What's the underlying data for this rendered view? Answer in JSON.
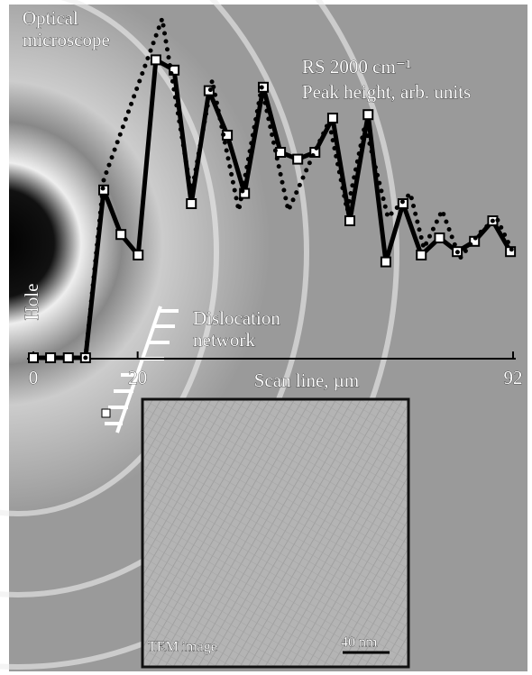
{
  "chart_data": {
    "type": "line",
    "title": "RS 2000 cm⁻¹",
    "subtitle": "Peak height, arb. units",
    "xlabel": "Scan line, µm",
    "annotations": [
      "Optical microscope",
      "Hole",
      "Dislocation network",
      "TEM image",
      "40 nm"
    ],
    "xlim": [
      0,
      92
    ],
    "xticks": [
      0,
      20,
      92
    ],
    "ylim": [
      0,
      100
    ],
    "series": [
      {
        "color": "#000000",
        "style": "solid-square",
        "x": [
          0,
          3.3,
          6.7,
          10,
          13.5,
          16.8,
          20.1,
          23.5,
          27,
          30.3,
          33.7,
          37.2,
          40.5,
          44.1,
          47.4,
          50.7,
          54,
          57.4,
          60.7,
          64.2,
          67.6,
          70.9,
          74.4,
          77.9,
          81.3,
          84.6,
          88.1,
          91.5
        ],
        "values": [
          0,
          0,
          0,
          0,
          49,
          36,
          30,
          87,
          84,
          45,
          78,
          65,
          48,
          79,
          60,
          58,
          60,
          70,
          40,
          71,
          28,
          45,
          30,
          35,
          31,
          34,
          40,
          31
        ]
      },
      {
        "color": "#000000",
        "style": "dotted",
        "x": [
          10,
          13.5,
          24.7,
          30.3,
          34.3,
          39.4,
          43.8,
          48.9,
          53.3,
          56.7,
          60.2,
          63.6,
          68,
          72.3,
          74.9,
          78.4,
          81.8,
          85.3,
          88.8,
          91.9
        ],
        "values": [
          0,
          52,
          99,
          48,
          81,
          43,
          79,
          43,
          58,
          69,
          43,
          68,
          41,
          48,
          32,
          43,
          29,
          36,
          41,
          31
        ]
      }
    ]
  }
}
